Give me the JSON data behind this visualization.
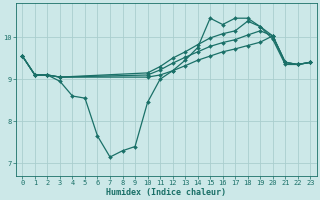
{
  "xlabel": "Humidex (Indice chaleur)",
  "bg_color": "#cce8e8",
  "grid_color": "#aacece",
  "line_color": "#1a7068",
  "xlim": [
    -0.5,
    23.5
  ],
  "ylim": [
    6.7,
    10.8
  ],
  "xticks": [
    0,
    1,
    2,
    3,
    4,
    5,
    6,
    7,
    8,
    9,
    10,
    11,
    12,
    13,
    14,
    15,
    16,
    17,
    18,
    19,
    20,
    21,
    22,
    23
  ],
  "yticks": [
    7,
    8,
    9,
    10
  ],
  "lines": [
    {
      "x": [
        0,
        1,
        2,
        3,
        4,
        5,
        6,
        7,
        8,
        9,
        10,
        11,
        12,
        13,
        14,
        15,
        16,
        17,
        18,
        19,
        20,
        21,
        22,
        23
      ],
      "y": [
        9.55,
        9.1,
        9.1,
        8.95,
        8.6,
        8.55,
        7.65,
        7.15,
        7.3,
        7.4,
        8.45,
        9.0,
        9.2,
        9.45,
        9.75,
        10.45,
        10.3,
        10.45,
        10.45,
        10.25,
        9.95,
        9.35,
        9.35,
        9.4
      ]
    },
    {
      "x": [
        0,
        1,
        2,
        3,
        10,
        11,
        12,
        13,
        14,
        15,
        16,
        17,
        18,
        19,
        20,
        21,
        22,
        23
      ],
      "y": [
        9.55,
        9.1,
        9.1,
        9.05,
        9.15,
        9.3,
        9.5,
        9.65,
        9.82,
        9.98,
        10.08,
        10.15,
        10.38,
        10.25,
        10.03,
        9.4,
        9.35,
        9.4
      ]
    },
    {
      "x": [
        0,
        1,
        2,
        3,
        10,
        11,
        12,
        13,
        14,
        15,
        16,
        17,
        18,
        19,
        20,
        21,
        22,
        23
      ],
      "y": [
        9.55,
        9.1,
        9.1,
        9.05,
        9.1,
        9.22,
        9.38,
        9.52,
        9.65,
        9.78,
        9.87,
        9.94,
        10.05,
        10.15,
        10.03,
        9.4,
        9.35,
        9.4
      ]
    },
    {
      "x": [
        0,
        1,
        2,
        3,
        10,
        11,
        12,
        13,
        14,
        15,
        16,
        17,
        18,
        19,
        20,
        21,
        22,
        23
      ],
      "y": [
        9.55,
        9.1,
        9.1,
        9.05,
        9.05,
        9.1,
        9.2,
        9.32,
        9.45,
        9.55,
        9.65,
        9.72,
        9.8,
        9.88,
        10.03,
        9.4,
        9.35,
        9.4
      ]
    }
  ]
}
